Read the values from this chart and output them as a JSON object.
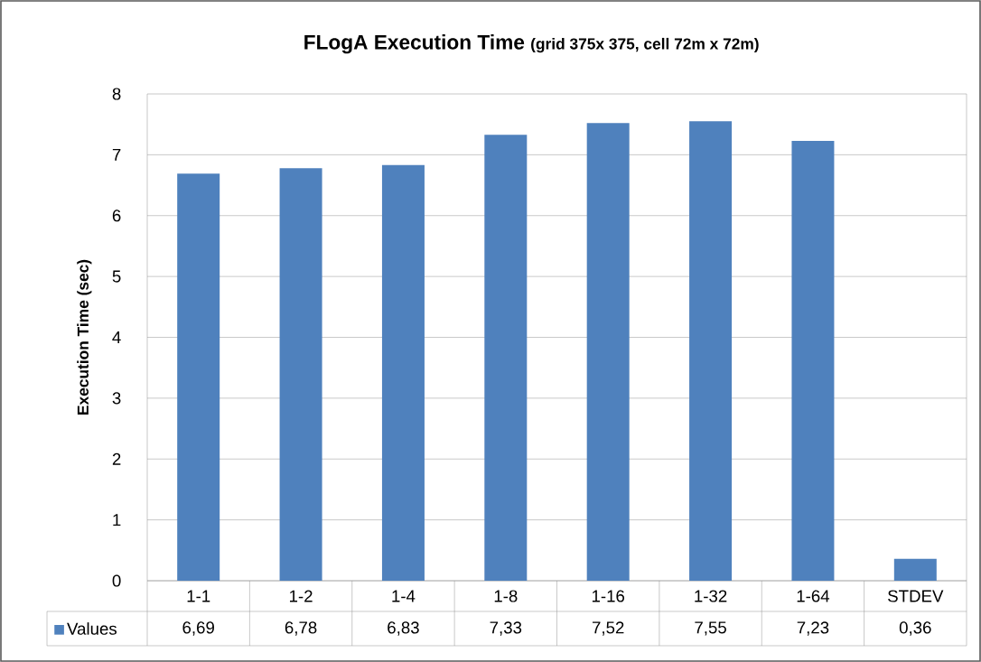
{
  "chart_data": {
    "type": "bar",
    "title": "FLogA Execution Time",
    "subtitle": "(grid 375x 375, cell 72m x 72m)",
    "ylabel": "Execution Time (sec)",
    "categories": [
      "1-1",
      "1-2",
      "1-4",
      "1-8",
      "1-16",
      "1-32",
      "1-64",
      "STDEV"
    ],
    "series": [
      {
        "name": "Values",
        "color": "#4f81bd",
        "values": [
          6.69,
          6.78,
          6.83,
          7.33,
          7.52,
          7.55,
          7.23,
          0.36
        ]
      }
    ],
    "value_labels": [
      "6,69",
      "6,78",
      "6,83",
      "7,33",
      "7,52",
      "7,55",
      "7,23",
      "0,36"
    ],
    "ylim": [
      0,
      8
    ],
    "yticks": [
      0,
      1,
      2,
      3,
      4,
      5,
      6,
      7,
      8
    ],
    "grid": "y",
    "legend": "bottom"
  }
}
